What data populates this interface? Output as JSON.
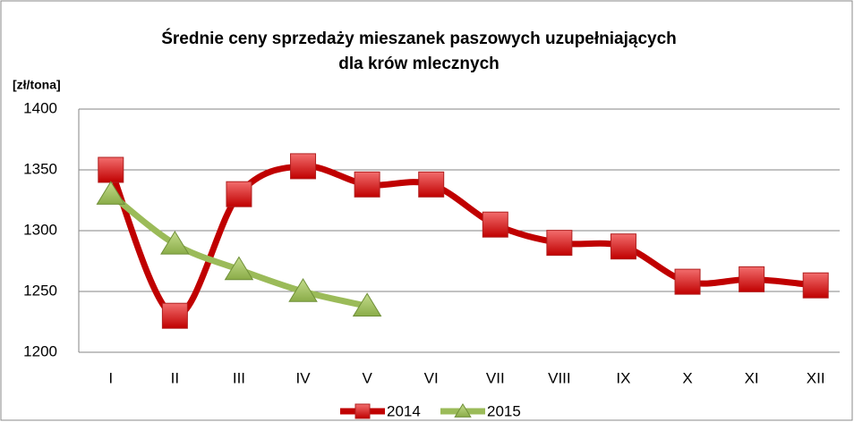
{
  "chart_data": {
    "type": "line",
    "title": [
      "Średnie ceny sprzedaży mieszanek paszowych uzupełniających",
      "dla krów mlecznych"
    ],
    "y_label": "[zł/tona]",
    "categories": [
      "I",
      "II",
      "III",
      "IV",
      "V",
      "VI",
      "VII",
      "VIII",
      "IX",
      "X",
      "XI",
      "XII"
    ],
    "series": [
      {
        "name": "2014",
        "color": "#c00000",
        "marker": "square",
        "marker_color": "#e8282b",
        "values": [
          1350,
          1230,
          1330,
          1353,
          1338,
          1338,
          1305,
          1290,
          1287,
          1258,
          1260,
          1255
        ]
      },
      {
        "name": "2015",
        "color": "#9bbb59",
        "marker": "triangle",
        "marker_color": "#9bbb59",
        "values": [
          1330,
          1289,
          1268,
          1250,
          1238,
          null,
          null,
          null,
          null,
          null,
          null,
          null
        ]
      }
    ],
    "ylim": [
      1200,
      1400
    ],
    "yticks": [
      1200,
      1250,
      1300,
      1350,
      1400
    ],
    "grid": true,
    "smooth": true,
    "legend": "bottom"
  }
}
